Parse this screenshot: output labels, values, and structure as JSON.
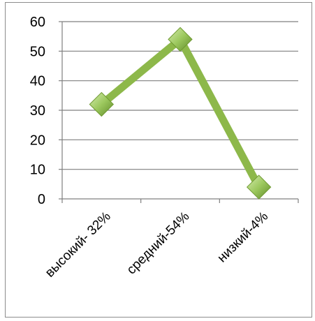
{
  "chart_data": {
    "type": "line",
    "categories": [
      "высокий- 32%",
      "средний-54%",
      "низкий-4%"
    ],
    "series": [
      {
        "values": [
          32,
          54,
          4
        ]
      }
    ],
    "ylim": [
      0,
      60
    ],
    "yticks": [
      0,
      10,
      20,
      30,
      40,
      50,
      60
    ],
    "ytick_labels": [
      "0",
      "10",
      "20",
      "30",
      "40",
      "50",
      "60"
    ],
    "grid": true,
    "legend": "none",
    "colors": {
      "line": "#8db84a",
      "marker_light": "#b9d98a",
      "marker_dark": "#6f9a32",
      "gridline": "#7f7f7f",
      "axis": "#7f7f7f"
    }
  }
}
